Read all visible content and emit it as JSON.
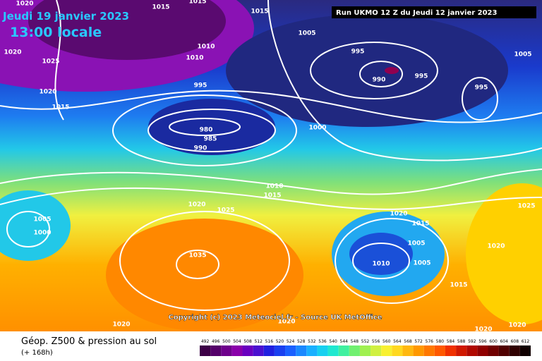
{
  "header": {
    "date": "Jeudi 19 janvier 2023",
    "time": "13:00 locale",
    "run": "Run UKMO 12 Z du Jeudi 12 janvier 2023"
  },
  "copyright": "Copyright (c) 2023 Meteociel.fr - Source UK MetOffice",
  "isobar_labels": [
    "1020",
    "1015",
    "1015",
    "1015",
    "1020",
    "1025",
    "1020",
    "1015",
    "1010",
    "1010",
    "1005",
    "995",
    "990",
    "995",
    "995",
    "1005",
    "995",
    "980",
    "985",
    "990",
    "1000",
    "1010",
    "1015",
    "1020",
    "1025",
    "1020",
    "1015",
    "1025",
    "1005",
    "1000",
    "1005",
    "1010",
    "1005",
    "1020",
    "1035",
    "1015",
    "1020",
    "1020",
    "1020",
    "1020"
  ],
  "legend": {
    "title": "Géop. Z500 & pression au sol",
    "subtitle": "(+ 168h)",
    "scale": [
      492,
      496,
      500,
      504,
      508,
      512,
      516,
      520,
      524,
      528,
      532,
      536,
      540,
      544,
      548,
      552,
      556,
      560,
      564,
      568,
      572,
      576,
      580,
      584,
      588,
      592,
      596,
      600,
      604,
      608,
      612
    ]
  }
}
